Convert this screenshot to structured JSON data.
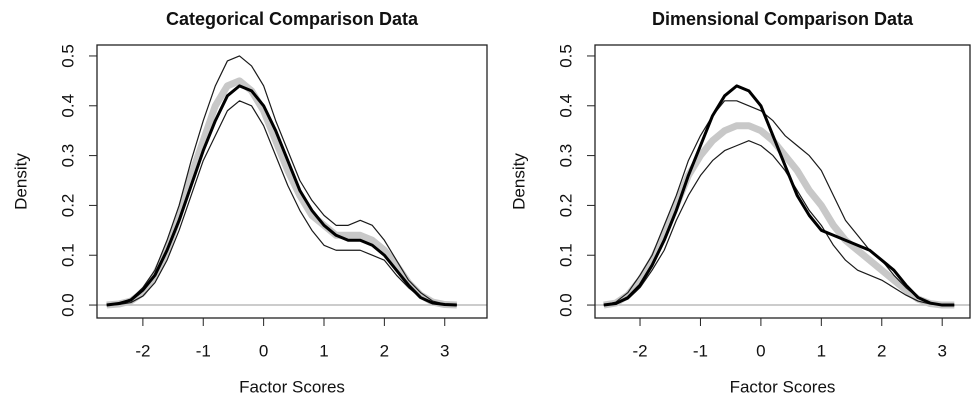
{
  "chart_data": [
    {
      "type": "line",
      "title": "Categorical Comparison Data",
      "x_label": "Factor Scores",
      "y_label": "Density",
      "x": [
        -2.6,
        -2.4,
        -2.2,
        -2.0,
        -1.8,
        -1.6,
        -1.4,
        -1.2,
        -1.0,
        -0.8,
        -0.6,
        -0.4,
        -0.2,
        0,
        0.2,
        0.4,
        0.6,
        0.8,
        1.0,
        1.2,
        1.4,
        1.6,
        1.8,
        2.0,
        2.2,
        2.4,
        2.6,
        2.8,
        3.0,
        3.2
      ],
      "series": [
        {
          "color": "#c8c8c8",
          "width": 7,
          "values": [
            0,
            0.002,
            0.008,
            0.025,
            0.06,
            0.11,
            0.18,
            0.26,
            0.33,
            0.4,
            0.44,
            0.45,
            0.43,
            0.39,
            0.33,
            0.27,
            0.22,
            0.18,
            0.16,
            0.14,
            0.14,
            0.14,
            0.13,
            0.11,
            0.08,
            0.045,
            0.02,
            0.006,
            0.001,
            0
          ]
        },
        {
          "color": "#1a1a1a",
          "width": 1.2,
          "values": [
            0,
            0.003,
            0.012,
            0.035,
            0.07,
            0.13,
            0.2,
            0.29,
            0.37,
            0.44,
            0.49,
            0.5,
            0.48,
            0.44,
            0.37,
            0.31,
            0.25,
            0.21,
            0.18,
            0.16,
            0.16,
            0.17,
            0.16,
            0.13,
            0.09,
            0.05,
            0.025,
            0.008,
            0.002,
            0
          ]
        },
        {
          "color": "#1a1a1a",
          "width": 1.2,
          "values": [
            0,
            0.001,
            0.005,
            0.018,
            0.045,
            0.09,
            0.15,
            0.22,
            0.29,
            0.34,
            0.39,
            0.41,
            0.4,
            0.36,
            0.3,
            0.24,
            0.19,
            0.15,
            0.12,
            0.11,
            0.11,
            0.11,
            0.1,
            0.09,
            0.06,
            0.035,
            0.015,
            0.004,
            0,
            0
          ]
        },
        {
          "color": "#000000",
          "width": 3,
          "values": [
            0,
            0.003,
            0.01,
            0.03,
            0.06,
            0.11,
            0.17,
            0.24,
            0.31,
            0.37,
            0.42,
            0.44,
            0.43,
            0.4,
            0.35,
            0.29,
            0.23,
            0.19,
            0.16,
            0.14,
            0.13,
            0.13,
            0.12,
            0.1,
            0.07,
            0.04,
            0.015,
            0.004,
            0.001,
            0
          ]
        }
      ],
      "xlim": [
        -2.76,
        3.7
      ],
      "ylim": [
        -0.026,
        0.522
      ],
      "xticks": [
        -2,
        -1,
        0,
        1,
        2,
        3
      ],
      "yticks": [
        {
          "value": 0,
          "label": "0.0"
        },
        0.1,
        0.2,
        0.3,
        0.4,
        0.5
      ]
    },
    {
      "type": "line",
      "title": "Dimensional Comparison Data",
      "x_label": "Factor Scores",
      "y_label": "Density",
      "x": [
        -2.6,
        -2.4,
        -2.2,
        -2.0,
        -1.8,
        -1.6,
        -1.4,
        -1.2,
        -1.0,
        -0.8,
        -0.6,
        -0.4,
        -0.2,
        0,
        0.2,
        0.4,
        0.6,
        0.8,
        1.0,
        1.2,
        1.4,
        1.6,
        1.8,
        2.0,
        2.2,
        2.4,
        2.6,
        2.8,
        3.0,
        3.2
      ],
      "series": [
        {
          "color": "#c8c8c8",
          "width": 7,
          "values": [
            0,
            0.004,
            0.02,
            0.05,
            0.09,
            0.14,
            0.2,
            0.26,
            0.3,
            0.33,
            0.35,
            0.36,
            0.36,
            0.35,
            0.33,
            0.3,
            0.27,
            0.23,
            0.2,
            0.16,
            0.13,
            0.11,
            0.09,
            0.07,
            0.05,
            0.03,
            0.012,
            0.003,
            0,
            0
          ]
        },
        {
          "color": "#1a1a1a",
          "width": 1.2,
          "values": [
            0,
            0.006,
            0.025,
            0.06,
            0.1,
            0.16,
            0.22,
            0.29,
            0.34,
            0.38,
            0.41,
            0.41,
            0.4,
            0.39,
            0.37,
            0.34,
            0.32,
            0.3,
            0.27,
            0.22,
            0.17,
            0.14,
            0.11,
            0.09,
            0.06,
            0.035,
            0.015,
            0.005,
            0,
            0
          ]
        },
        {
          "color": "#1a1a1a",
          "width": 1.2,
          "values": [
            0,
            0.002,
            0.012,
            0.035,
            0.07,
            0.11,
            0.17,
            0.22,
            0.26,
            0.29,
            0.31,
            0.32,
            0.33,
            0.32,
            0.3,
            0.27,
            0.23,
            0.19,
            0.16,
            0.12,
            0.09,
            0.07,
            0.06,
            0.05,
            0.035,
            0.02,
            0.008,
            0.002,
            0,
            0
          ]
        },
        {
          "color": "#000000",
          "width": 3,
          "values": [
            0,
            0.003,
            0.015,
            0.04,
            0.08,
            0.13,
            0.19,
            0.26,
            0.32,
            0.38,
            0.42,
            0.44,
            0.43,
            0.4,
            0.34,
            0.28,
            0.22,
            0.18,
            0.15,
            0.14,
            0.13,
            0.12,
            0.11,
            0.09,
            0.07,
            0.04,
            0.015,
            0.004,
            0,
            0
          ]
        }
      ],
      "xlim": [
        -2.745,
        3.46
      ],
      "ylim": [
        -0.026,
        0.522
      ],
      "xticks": [
        -2,
        -1,
        0,
        1,
        2,
        3
      ],
      "yticks": [
        {
          "value": 0,
          "label": "0.0"
        },
        0.1,
        0.2,
        0.3,
        0.4,
        0.5
      ]
    }
  ]
}
